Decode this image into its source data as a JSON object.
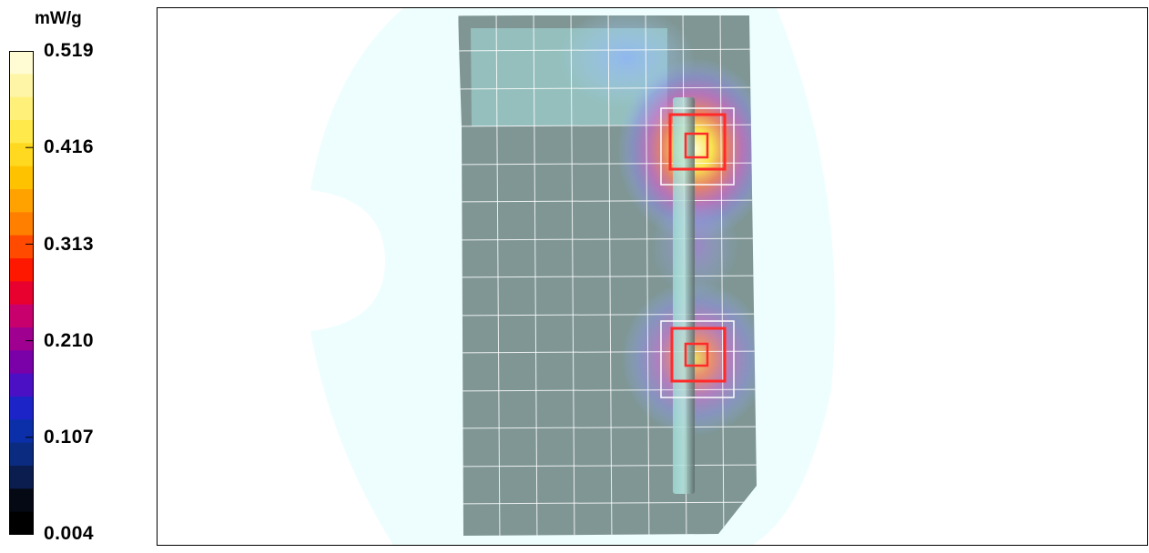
{
  "chart_data": {
    "type": "heatmap",
    "unit": "mW/g",
    "colorbar": {
      "min": 0.004,
      "max": 0.519,
      "tick_labels": [
        "0.519",
        "0.416",
        "0.313",
        "0.210",
        "0.107",
        "0.004"
      ],
      "tick_values": [
        0.519,
        0.416,
        0.313,
        0.21,
        0.107,
        0.004
      ],
      "colors": [
        "#fffbd3",
        "#fff5a7",
        "#fff07a",
        "#ffe94b",
        "#ffd820",
        "#ffc200",
        "#ffa200",
        "#ff7f00",
        "#ff4a00",
        "#ff1800",
        "#e8002e",
        "#c8006e",
        "#a0008f",
        "#7a00a8",
        "#4b10c4",
        "#1c24c7",
        "#0a2fa8",
        "#0a2b7f",
        "#0b1d4e",
        "#050913",
        "#000000"
      ]
    },
    "hotspots": [
      {
        "name": "upper",
        "peak": 0.519
      },
      {
        "name": "lower",
        "peak": 0.35
      }
    ]
  }
}
